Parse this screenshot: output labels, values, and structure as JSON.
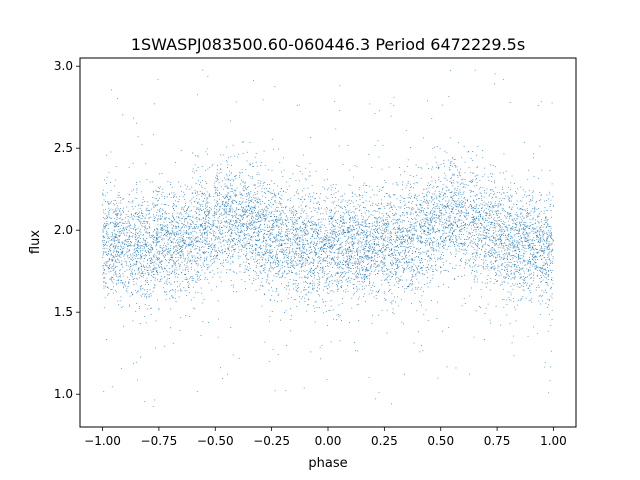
{
  "chart_data": {
    "type": "scatter",
    "title": "1SWASPJ083500.60-060446.3 Period 6472229.5s",
    "xlabel": "phase",
    "ylabel": "flux",
    "xlim": [
      -1.1,
      1.1
    ],
    "ylim": [
      0.8,
      3.05
    ],
    "xticks": [
      -1.0,
      -0.75,
      -0.5,
      -0.25,
      0.0,
      0.25,
      0.5,
      0.75,
      1.0
    ],
    "xtick_labels": [
      "−1.00",
      "−0.75",
      "−0.50",
      "−0.25",
      "0.00",
      "0.25",
      "0.50",
      "0.75",
      "1.00"
    ],
    "yticks": [
      1.0,
      1.5,
      2.0,
      2.5,
      3.0
    ],
    "ytick_labels": [
      "1.0",
      "1.5",
      "2.0",
      "2.5",
      "3.0"
    ],
    "grid": false,
    "marker_color": "#1f77b4",
    "series": [
      {
        "phase_trend": [
          [
            -1.0,
            1.92
          ],
          [
            -0.9,
            1.93
          ],
          [
            -0.8,
            1.88
          ],
          [
            -0.75,
            1.95
          ],
          [
            -0.7,
            1.9
          ],
          [
            -0.6,
            1.96
          ],
          [
            -0.5,
            2.05
          ],
          [
            -0.45,
            2.1
          ],
          [
            -0.4,
            2.07
          ],
          [
            -0.3,
            2.0
          ],
          [
            -0.2,
            1.93
          ],
          [
            -0.1,
            1.92
          ],
          [
            0.0,
            1.88
          ],
          [
            0.1,
            1.93
          ],
          [
            0.2,
            1.88
          ],
          [
            0.25,
            1.95
          ],
          [
            0.3,
            1.9
          ],
          [
            0.4,
            1.96
          ],
          [
            0.5,
            2.05
          ],
          [
            0.55,
            2.1
          ],
          [
            0.6,
            2.07
          ],
          [
            0.7,
            2.0
          ],
          [
            0.8,
            1.93
          ],
          [
            0.9,
            1.92
          ],
          [
            1.0,
            1.88
          ]
        ],
        "scatter_band": 0.17,
        "point_count": 9000
      }
    ]
  }
}
